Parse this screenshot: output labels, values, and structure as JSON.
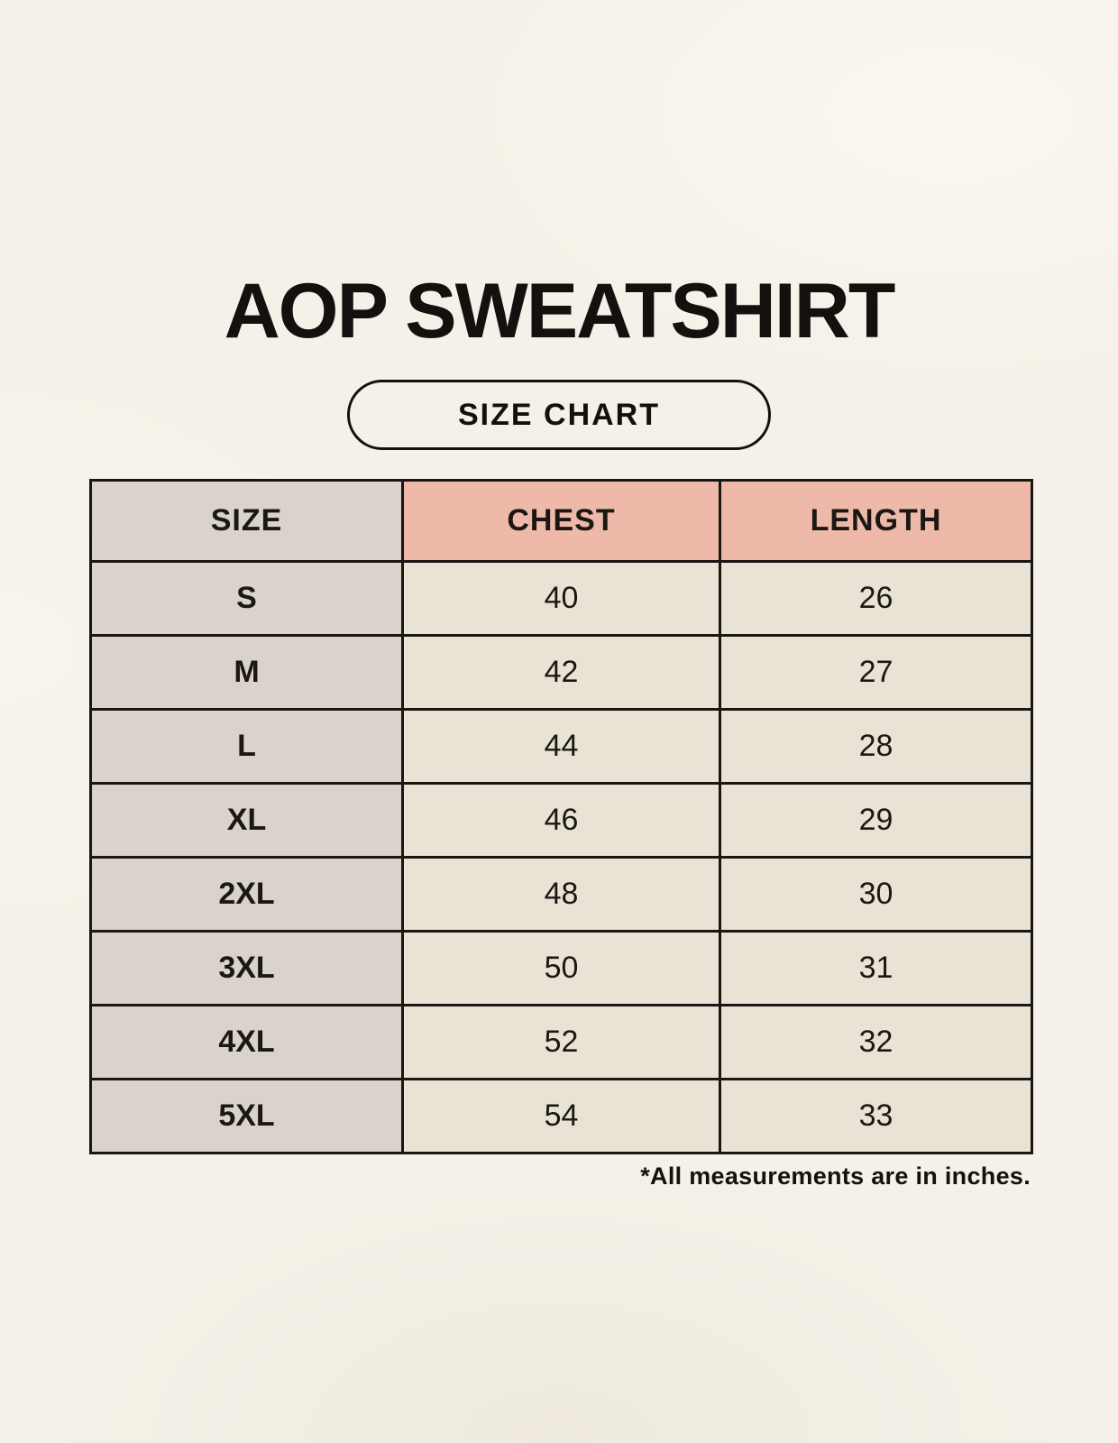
{
  "page": {
    "title": "AOP SWEATSHIRT",
    "badge_label": "SIZE CHART",
    "footnote": "*All measurements are in inches."
  },
  "chart_data": {
    "type": "table",
    "title": "AOP SWEATSHIRT — SIZE CHART",
    "columns": [
      "SIZE",
      "CHEST",
      "LENGTH"
    ],
    "rows": [
      [
        "S",
        "40",
        "26"
      ],
      [
        "M",
        "42",
        "27"
      ],
      [
        "L",
        "44",
        "28"
      ],
      [
        "XL",
        "46",
        "29"
      ],
      [
        "2XL",
        "48",
        "30"
      ],
      [
        "3XL",
        "50",
        "31"
      ],
      [
        "4XL",
        "52",
        "32"
      ],
      [
        "5XL",
        "54",
        "33"
      ]
    ],
    "units": "inches",
    "layout": {
      "header_accent_columns": [
        "CHEST",
        "LENGTH"
      ],
      "size_column_shaded": true
    }
  },
  "colors": {
    "background": "#f5f1e8",
    "size_column": "#d9d3cc",
    "header_accent": "#eeb9a9",
    "value_cell": "#e9e3d6",
    "border": "#1a1613",
    "text": "#14100d"
  }
}
